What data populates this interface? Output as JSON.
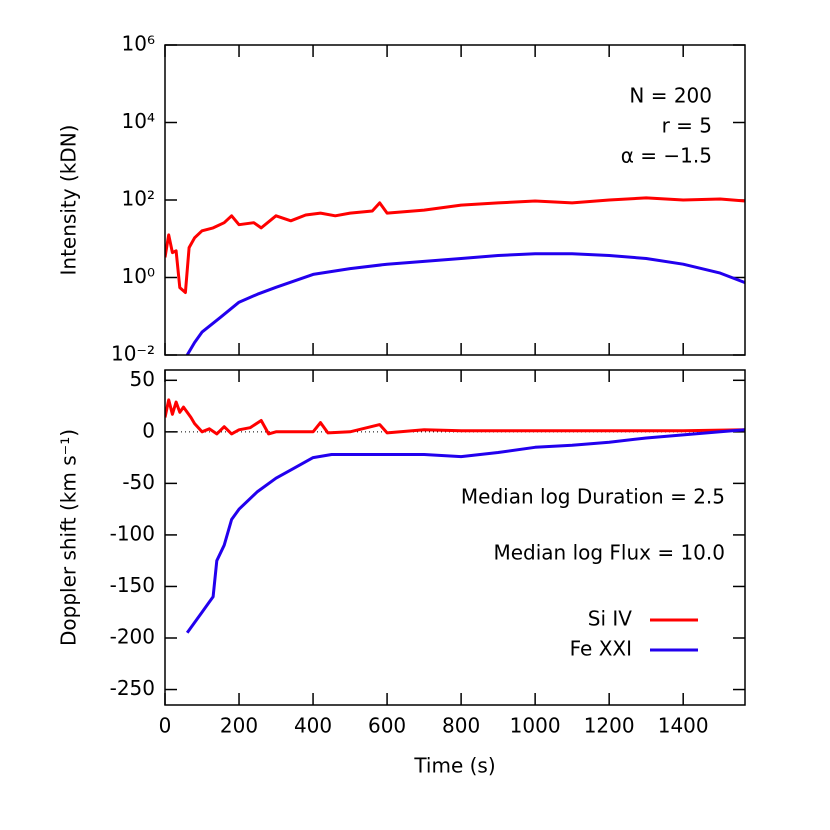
{
  "chart_data": [
    {
      "type": "line",
      "ylabel": "Intensity (kDN)",
      "log_y": true,
      "ylim": [
        0.01,
        1000000
      ],
      "yticks": [
        {
          "value": 0.01,
          "label": "10⁻²"
        },
        {
          "value": 1,
          "label": "10⁰"
        },
        {
          "value": 100,
          "label": "10²"
        },
        {
          "value": 10000,
          "label": "10⁴"
        },
        {
          "value": 1000000,
          "label": "10⁶"
        }
      ],
      "xlim": [
        0,
        1567
      ],
      "xticks": [
        0,
        200,
        400,
        600,
        800,
        1000,
        1200,
        1400
      ],
      "annotations": [
        "N = 200",
        "r = 5",
        "α = −1.5"
      ],
      "series": [
        {
          "color": "#ff0000",
          "x": [
            0,
            10,
            20,
            30,
            40,
            55,
            65,
            80,
            100,
            130,
            160,
            180,
            200,
            240,
            260,
            300,
            340,
            380,
            420,
            460,
            500,
            560,
            580,
            600,
            700,
            800,
            900,
            1000,
            1100,
            1200,
            1300,
            1400,
            1500,
            1567
          ],
          "values": [
            3.3,
            12.6,
            4.4,
            4.9,
            0.55,
            0.41,
            5.9,
            10.6,
            16,
            19,
            26,
            39,
            23,
            26,
            19,
            39,
            29,
            41,
            46,
            39,
            46,
            52,
            84,
            46,
            55,
            74,
            84,
            94,
            84,
            100,
            113,
            100,
            106,
            94
          ]
        },
        {
          "color": "#2200ee",
          "x": [
            60,
            80,
            100,
            150,
            200,
            250,
            300,
            400,
            500,
            600,
            700,
            800,
            900,
            1000,
            1100,
            1200,
            1300,
            1400,
            1500,
            1567
          ],
          "values": [
            0.01,
            0.021,
            0.039,
            0.094,
            0.23,
            0.37,
            0.56,
            1.2,
            1.7,
            2.2,
            2.6,
            3.1,
            3.7,
            4.1,
            4.1,
            3.7,
            3.1,
            2.2,
            1.3,
            0.74
          ]
        }
      ]
    },
    {
      "type": "line",
      "xlabel": "Time (s)",
      "ylabel": "Doppler shift (km s⁻¹)",
      "ylim": [
        -265,
        60
      ],
      "yticks": [
        -250,
        -200,
        -150,
        -100,
        -50,
        0,
        50
      ],
      "xlim": [
        0,
        1567
      ],
      "xticks": [
        0,
        200,
        400,
        600,
        800,
        1000,
        1200,
        1400
      ],
      "annotations": [
        "Median log Duration = 2.5",
        "Median log Flux = 10.0"
      ],
      "legend": "lower right",
      "series": [
        {
          "name": "Si IV",
          "color": "#ff0000",
          "x": [
            0,
            10,
            20,
            30,
            40,
            50,
            70,
            80,
            100,
            120,
            140,
            160,
            180,
            200,
            230,
            260,
            280,
            300,
            400,
            420,
            440,
            500,
            580,
            600,
            700,
            800,
            1000,
            1200,
            1400,
            1567
          ],
          "values": [
            14,
            31,
            17,
            29,
            19,
            24,
            14,
            8,
            0,
            3,
            -2,
            5,
            -2,
            2,
            4,
            11,
            -2,
            0,
            0,
            9,
            -1,
            0,
            7,
            -1,
            2,
            1,
            1,
            1,
            1,
            2
          ]
        },
        {
          "name": "Fe XXI",
          "color": "#2200ee",
          "x": [
            60,
            80,
            100,
            120,
            130,
            140,
            160,
            180,
            200,
            250,
            300,
            350,
            400,
            450,
            500,
            600,
            700,
            800,
            900,
            1000,
            1100,
            1200,
            1300,
            1400,
            1500,
            1567
          ],
          "values": [
            -195,
            -185,
            -175,
            -165,
            -160,
            -125,
            -110,
            -85,
            -75,
            -58,
            -45,
            -35,
            -25,
            -22,
            -22,
            -22,
            -22,
            -24,
            -20,
            -15,
            -13,
            -10,
            -6,
            -3,
            0,
            2
          ]
        }
      ]
    }
  ]
}
